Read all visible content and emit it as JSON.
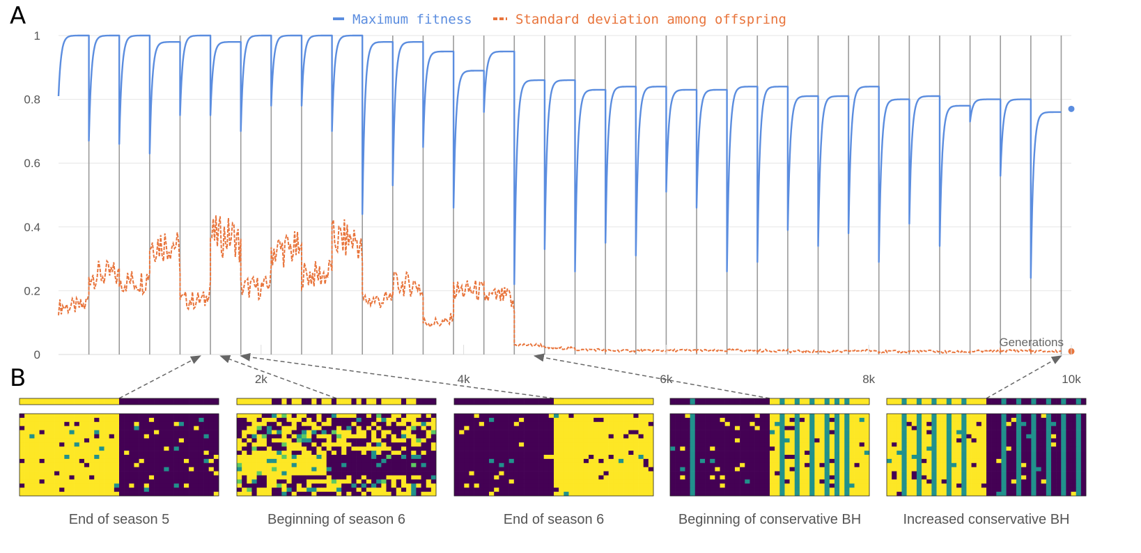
{
  "panel_labels": [
    "A",
    "B"
  ],
  "colors": {
    "max_fitness": "#5b8ddf",
    "std_dev": "#e8743b",
    "season_line": "#9a9a9a",
    "grid": "#e6e6e6",
    "viridis_dark": "#440154",
    "viridis_teal": "#21918c",
    "viridis_yellow": "#fde725",
    "viridis_green": "#5ec962",
    "viridis_blue": "#3b528b"
  },
  "chart_data": {
    "type": "line",
    "title": "",
    "xlabel": "Generations",
    "ylabel": "",
    "xlim": [
      0,
      10000
    ],
    "ylim": [
      0,
      1
    ],
    "x_ticks": [
      "2k",
      "4k",
      "6k",
      "8k",
      "10k"
    ],
    "x_tick_values": [
      2000,
      4000,
      6000,
      8000,
      10000
    ],
    "y_ticks": [
      "0",
      "0.2",
      "0.4",
      "0.6",
      "0.8",
      "1"
    ],
    "y_tick_values": [
      0,
      0.2,
      0.4,
      0.6,
      0.8,
      1
    ],
    "grid": true,
    "legend_position": "top-center",
    "season_boundaries": [
      300,
      600,
      900,
      1200,
      1500,
      1800,
      2100,
      2400,
      2700,
      3000,
      3300,
      3600,
      3900,
      4200,
      4500,
      4800,
      5100,
      5400,
      5700,
      6000,
      6300,
      6600,
      6900,
      7200,
      7500,
      7800,
      8100,
      8400,
      8700,
      9000,
      9300,
      9600,
      9900
    ],
    "series": [
      {
        "name": "Maximum fitness",
        "style": "solid",
        "season_start_values": [
          0.81,
          0.67,
          0.66,
          0.63,
          0.75,
          0.75,
          0.7,
          0.78,
          0.78,
          0.7,
          0.44,
          0.53,
          0.65,
          0.46,
          0.76,
          0.22,
          0.33,
          0.26,
          0.35,
          0.31,
          0.51,
          0.46,
          0.26,
          0.29,
          0.39,
          0.34,
          0.38,
          0.29,
          0.41,
          0.34,
          0.73,
          0.56,
          0.24
        ],
        "season_plateau_values": [
          1.0,
          1.0,
          1.0,
          0.98,
          1.0,
          0.98,
          1.0,
          1.0,
          1.0,
          1.0,
          0.98,
          0.98,
          0.95,
          0.89,
          0.95,
          0.86,
          0.86,
          0.83,
          0.84,
          0.84,
          0.83,
          0.83,
          0.84,
          0.84,
          0.81,
          0.81,
          0.84,
          0.8,
          0.81,
          0.78,
          0.8,
          0.8,
          0.76
        ],
        "final_value": 0.77
      },
      {
        "name": "Standard deviation among offspring",
        "style": "dashed",
        "season_values": [
          0.15,
          0.25,
          0.23,
          0.35,
          0.17,
          0.37,
          0.21,
          0.33,
          0.25,
          0.36,
          0.17,
          0.22,
          0.1,
          0.2,
          0.18,
          0.03,
          0.02,
          0.015,
          0.012,
          0.012,
          0.013,
          0.012,
          0.013,
          0.012,
          0.01,
          0.009,
          0.012,
          0.009,
          0.01,
          0.008,
          0.01,
          0.012,
          0.01
        ],
        "final_value": 0.01
      }
    ]
  },
  "heatmaps": [
    {
      "caption": "End of season 5",
      "pattern": "split-yellow-left"
    },
    {
      "caption": "Beginning of season 6",
      "pattern": "mixed"
    },
    {
      "caption": "End of season 6",
      "pattern": "split-purple-left"
    },
    {
      "caption": "Beginning of conservative BH",
      "pattern": "teal-purple-left-yellow-right"
    },
    {
      "caption": "Increased conservative BH",
      "pattern": "yellow-left-purple-right"
    }
  ]
}
